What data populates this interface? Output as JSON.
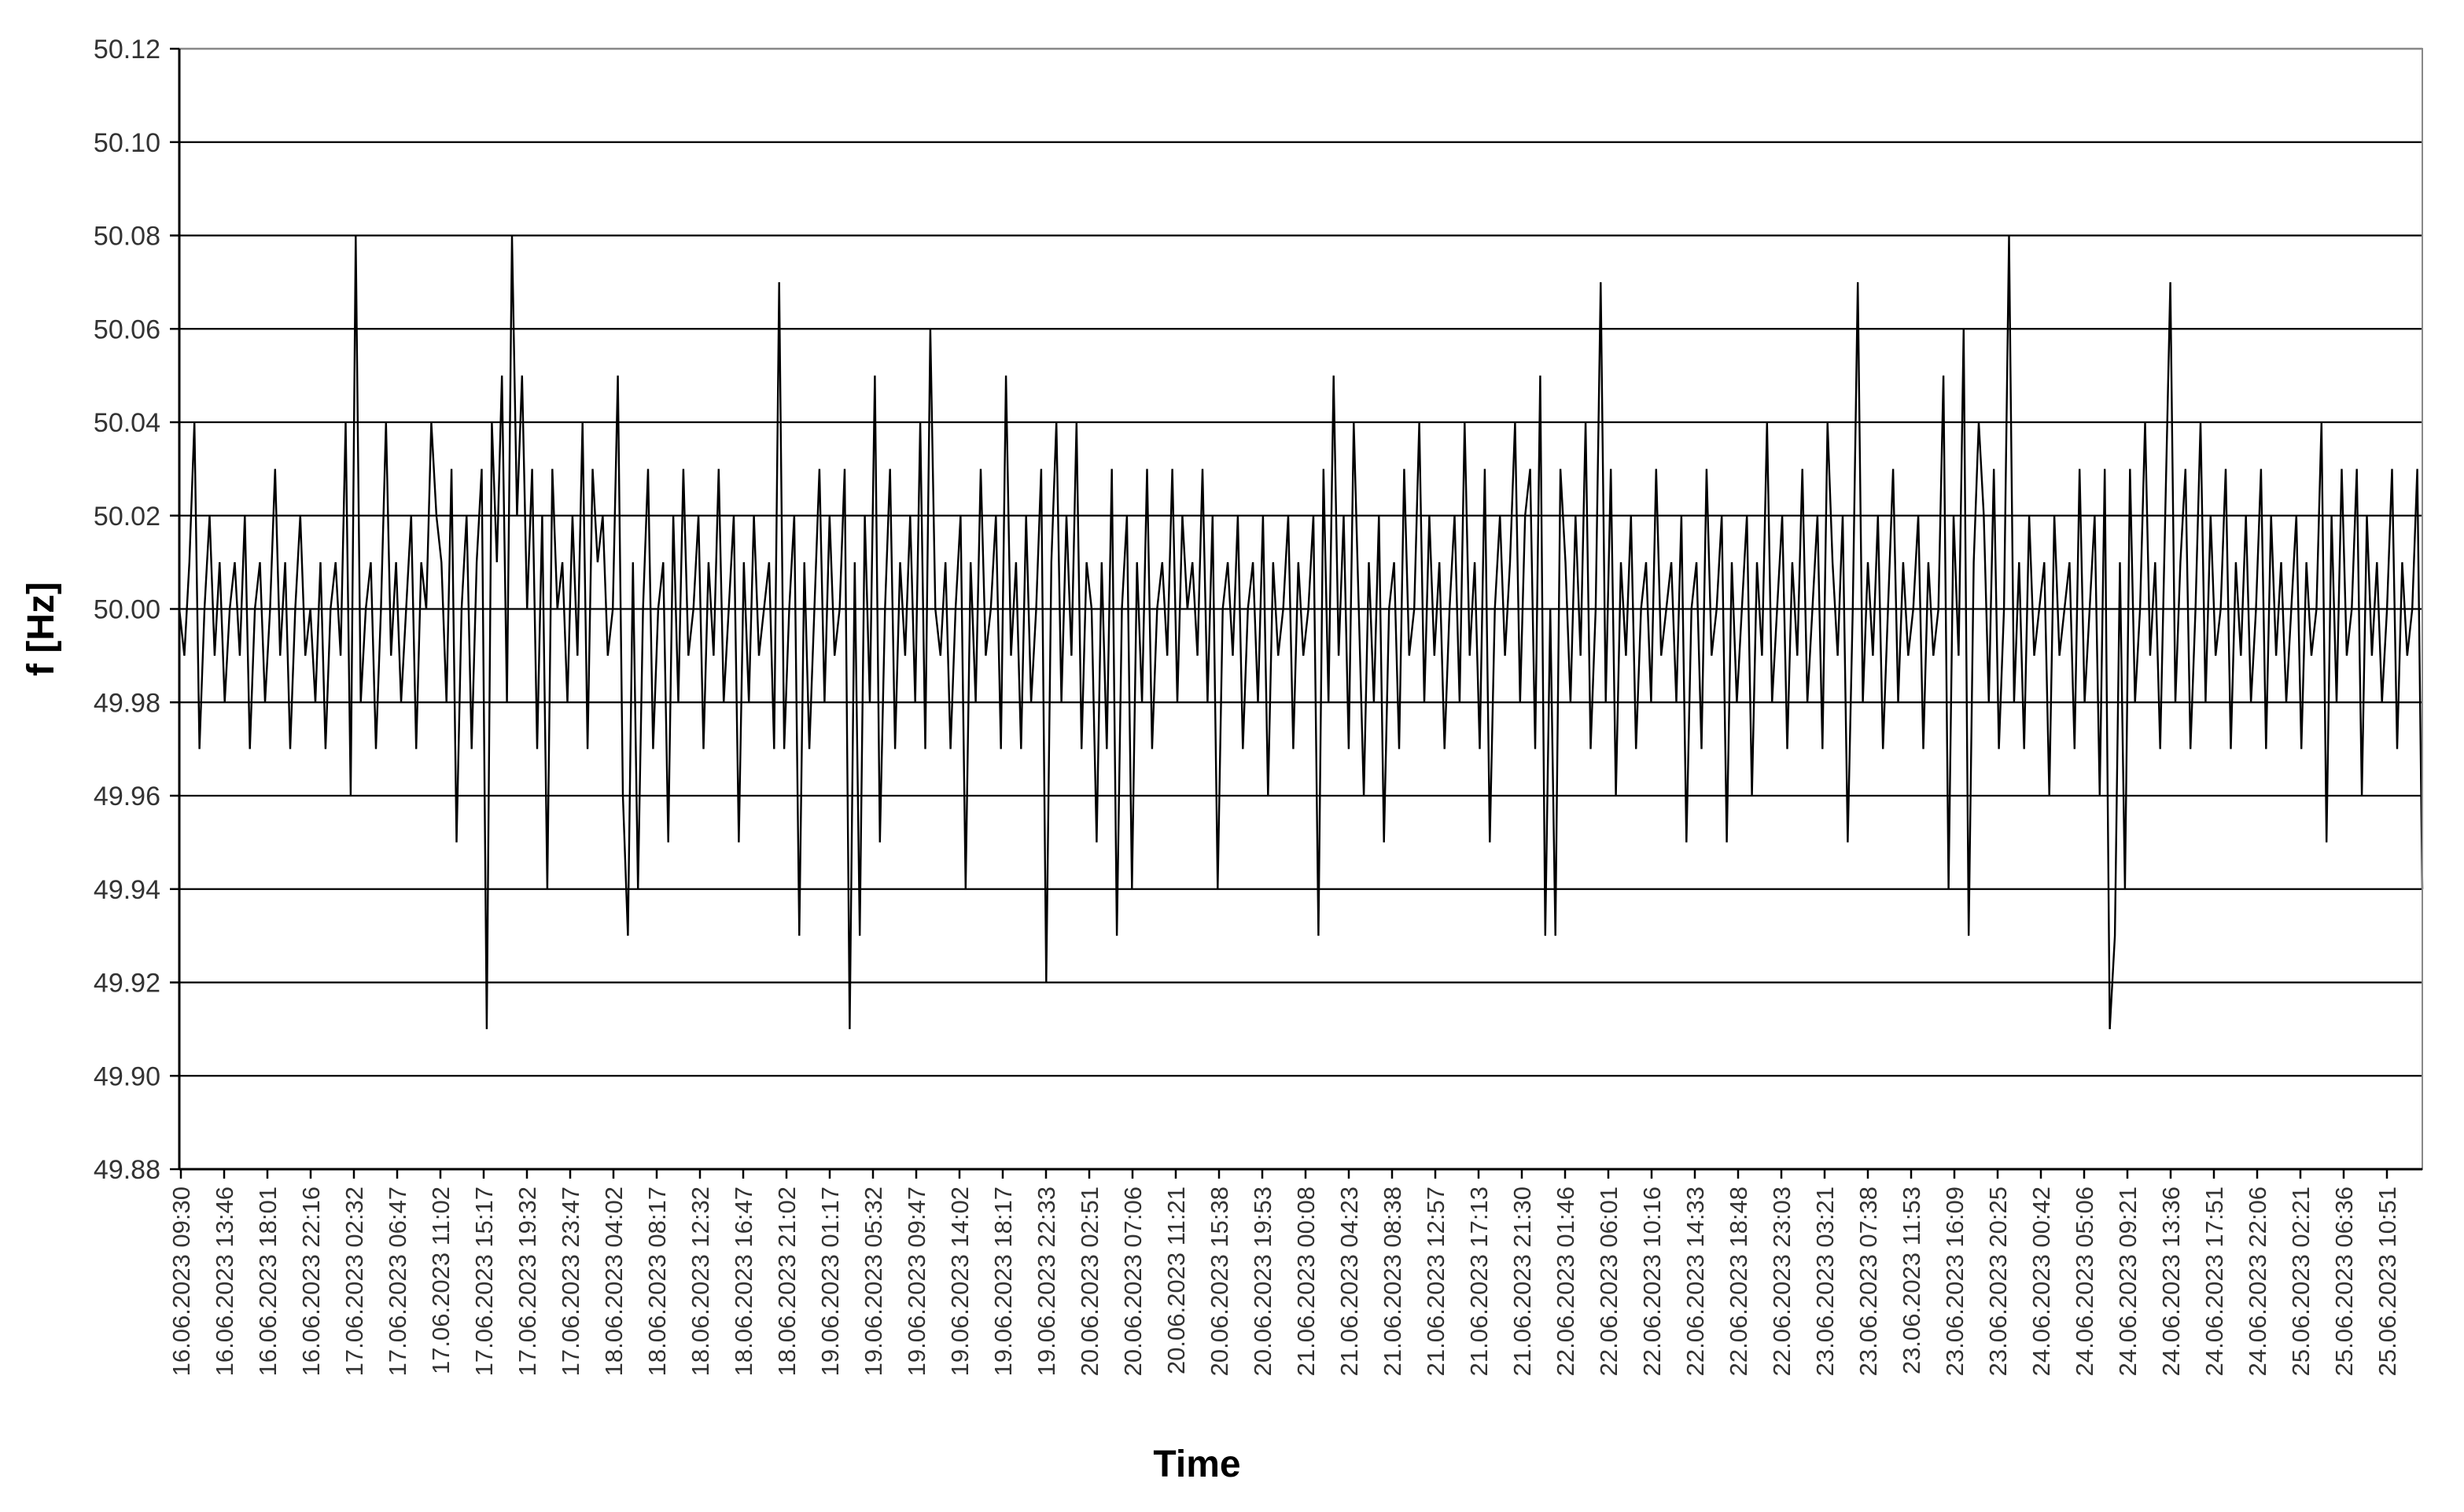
{
  "chart_data": {
    "type": "line",
    "title": "",
    "xlabel": "Time",
    "ylabel": "f  [Hz]",
    "ylim": [
      49.88,
      50.12
    ],
    "yticks": [
      "49.88",
      "49.90",
      "49.92",
      "49.94",
      "49.96",
      "49.98",
      "50.00",
      "50.02",
      "50.04",
      "50.06",
      "50.08",
      "50.10",
      "50.12"
    ],
    "grid": true,
    "legend": "none",
    "line_color": "#000000",
    "x_tick_labels": [
      "16.06.2023 09:30",
      "16.06.2023 13:46",
      "16.06.2023 18:01",
      "16.06.2023 22:16",
      "17.06.2023 02:32",
      "17.06.2023 06:47",
      "17.06.2023 11:02",
      "17.06.2023 15:17",
      "17.06.2023 19:32",
      "17.06.2023 23:47",
      "18.06.2023 04:02",
      "18.06.2023 08:17",
      "18.06.2023 12:32",
      "18.06.2023 16:47",
      "18.06.2023 21:02",
      "19.06.2023 01:17",
      "19.06.2023 05:32",
      "19.06.2023 09:47",
      "19.06.2023 14:02",
      "19.06.2023 18:17",
      "19.06.2023 22:33",
      "20.06.2023 02:51",
      "20.06.2023 07:06",
      "20.06.2023 11:21",
      "20.06.2023 15:38",
      "20.06.2023 19:53",
      "21.06.2023 00:08",
      "21.06.2023 04:23",
      "21.06.2023 08:38",
      "21.06.2023 12:57",
      "21.06.2023 17:13",
      "21.06.2023 21:30",
      "22.06.2023 01:46",
      "22.06.2023 06:01",
      "22.06.2023 10:16",
      "22.06.2023 14:33",
      "22.06.2023 18:48",
      "22.06.2023 23:03",
      "23.06.2023 03:21",
      "23.06.2023 07:38",
      "23.06.2023 11:53",
      "23.06.2023 16:09",
      "23.06.2023 20:25",
      "24.06.2023 00:42",
      "24.06.2023 05:06",
      "24.06.2023 09:21",
      "24.06.2023 13:36",
      "24.06.2023 17:51",
      "24.06.2023 22:06",
      "25.06.2023 02:21",
      "25.06.2023 06:36",
      "25.06.2023 10:51"
    ],
    "series": [
      {
        "values": [
          50.0,
          49.99,
          50.01,
          50.04,
          49.97,
          50.0,
          50.02,
          49.99,
          50.01,
          49.98,
          50.0,
          50.01,
          49.99,
          50.02,
          49.97,
          50.0,
          50.01,
          49.98,
          50.0,
          50.03,
          49.99,
          50.01,
          49.97,
          50.0,
          50.02,
          49.99,
          50.0,
          49.98,
          50.01,
          49.97,
          50.0,
          50.01,
          49.99,
          50.04,
          49.96,
          50.08,
          49.98,
          50.0,
          50.01,
          49.97,
          50.0,
          50.04,
          49.99,
          50.01,
          49.98,
          50.0,
          50.02,
          49.97,
          50.01,
          50.0,
          50.04,
          50.02,
          50.01,
          49.98,
          50.03,
          49.95,
          50.0,
          50.02,
          49.97,
          50.01,
          50.03,
          49.91,
          50.04,
          50.01,
          50.05,
          49.98,
          50.08,
          50.02,
          50.05,
          50.0,
          50.03,
          49.97,
          50.02,
          49.94,
          50.03,
          50.0,
          50.01,
          49.98,
          50.02,
          49.99,
          50.04,
          49.97,
          50.03,
          50.01,
          50.02,
          49.99,
          50.0,
          50.05,
          49.96,
          49.93,
          50.01,
          49.94,
          50.0,
          50.03,
          49.97,
          50.0,
          50.01,
          49.95,
          50.02,
          49.98,
          50.03,
          49.99,
          50.0,
          50.02,
          49.97,
          50.01,
          49.99,
          50.03,
          49.98,
          50.0,
          50.02,
          49.95,
          50.01,
          49.98,
          50.02,
          49.99,
          50.0,
          50.01,
          49.97,
          50.07,
          49.97,
          50.0,
          50.02,
          49.93,
          50.01,
          49.97,
          50.0,
          50.03,
          49.98,
          50.02,
          49.99,
          50.0,
          50.03,
          49.91,
          50.01,
          49.93,
          50.02,
          49.98,
          50.05,
          49.95,
          50.0,
          50.03,
          49.97,
          50.01,
          49.99,
          50.02,
          49.98,
          50.04,
          49.97,
          50.06,
          50.0,
          49.99,
          50.01,
          49.97,
          50.0,
          50.02,
          49.94,
          50.01,
          49.98,
          50.03,
          49.99,
          50.0,
          50.02,
          49.97,
          50.05,
          49.99,
          50.01,
          49.97,
          50.02,
          49.98,
          50.0,
          50.03,
          49.92,
          50.01,
          50.04,
          49.98,
          50.02,
          49.99,
          50.04,
          49.97,
          50.01,
          50.0,
          49.95,
          50.01,
          49.97,
          50.03,
          49.93,
          50.0,
          50.02,
          49.94,
          50.01,
          49.98,
          50.03,
          49.97,
          50.0,
          50.01,
          49.99,
          50.03,
          49.98,
          50.02,
          50.0,
          50.01,
          49.99,
          50.03,
          49.98,
          50.02,
          49.94,
          50.0,
          50.01,
          49.99,
          50.02,
          49.97,
          50.0,
          50.01,
          49.98,
          50.02,
          49.96,
          50.01,
          49.99,
          50.0,
          50.02,
          49.97,
          50.01,
          49.99,
          50.0,
          50.02,
          49.93,
          50.03,
          49.98,
          50.05,
          49.99,
          50.02,
          49.97,
          50.04,
          50.0,
          49.96,
          50.01,
          49.98,
          50.02,
          49.95,
          50.0,
          50.01,
          49.97,
          50.03,
          49.99,
          50.0,
          50.04,
          49.98,
          50.02,
          49.99,
          50.01,
          49.97,
          50.0,
          50.02,
          49.98,
          50.04,
          49.99,
          50.01,
          49.97,
          50.03,
          49.95,
          50.0,
          50.02,
          49.99,
          50.01,
          50.04,
          49.98,
          50.02,
          50.03,
          49.97,
          50.05,
          49.93,
          50.0,
          49.93,
          50.03,
          50.01,
          49.98,
          50.02,
          49.99,
          50.04,
          49.97,
          50.0,
          50.07,
          49.98,
          50.03,
          49.96,
          50.01,
          49.99,
          50.02,
          49.97,
          50.0,
          50.01,
          49.98,
          50.03,
          49.99,
          50.0,
          50.01,
          49.98,
          50.02,
          49.95,
          50.0,
          50.01,
          49.97,
          50.03,
          49.99,
          50.0,
          50.02,
          49.95,
          50.01,
          49.98,
          50.0,
          50.02,
          49.96,
          50.01,
          49.99,
          50.04,
          49.98,
          50.0,
          50.02,
          49.97,
          50.01,
          49.99,
          50.03,
          49.98,
          50.0,
          50.02,
          49.97,
          50.04,
          50.01,
          49.99,
          50.02,
          49.95,
          50.0,
          50.07,
          49.98,
          50.01,
          49.99,
          50.02,
          49.97,
          50.0,
          50.03,
          49.98,
          50.01,
          49.99,
          50.0,
          50.02,
          49.97,
          50.01,
          49.99,
          50.0,
          50.05,
          49.94,
          50.02,
          49.99,
          50.06,
          49.93,
          50.01,
          50.04,
          50.02,
          49.98,
          50.03,
          49.97,
          50.0,
          50.08,
          49.98,
          50.01,
          49.97,
          50.02,
          49.99,
          50.0,
          50.01,
          49.96,
          50.02,
          49.99,
          50.0,
          50.01,
          49.97,
          50.03,
          49.98,
          50.0,
          50.02,
          49.96,
          50.03,
          49.91,
          49.93,
          50.01,
          49.94,
          50.03,
          49.98,
          50.0,
          50.04,
          49.99,
          50.01,
          49.97,
          50.02,
          50.07,
          49.98,
          50.01,
          50.03,
          49.97,
          50.0,
          50.04,
          49.98,
          50.02,
          49.99,
          50.0,
          50.03,
          49.97,
          50.01,
          49.99,
          50.02,
          49.98,
          50.0,
          50.03,
          49.97,
          50.02,
          49.99,
          50.01,
          49.98,
          50.0,
          50.02,
          49.97,
          50.01,
          49.99,
          50.0,
          50.04,
          49.95,
          50.02,
          49.98,
          50.03,
          49.99,
          50.0,
          50.03,
          49.96,
          50.02,
          49.99,
          50.01,
          49.98,
          50.0,
          50.03,
          49.97,
          50.01,
          49.99,
          50.0,
          50.03,
          49.94
        ]
      }
    ]
  }
}
